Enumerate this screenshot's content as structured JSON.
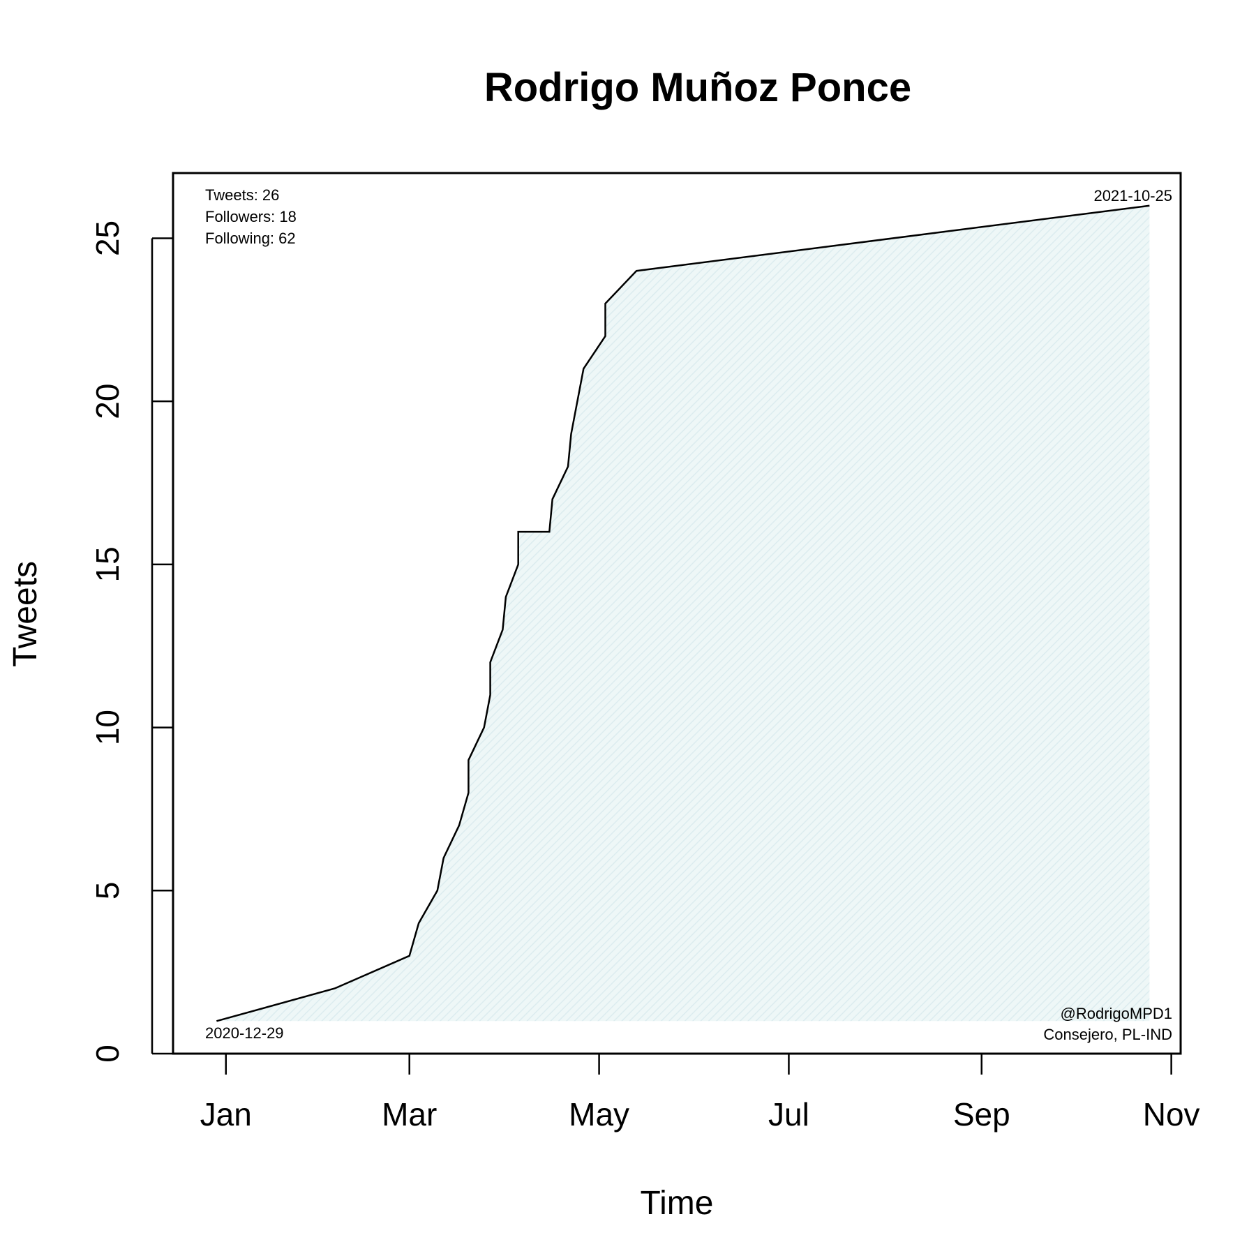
{
  "chart_data": {
    "type": "area",
    "title": "Rodrigo Muñoz Ponce",
    "xlabel": "Time",
    "ylabel": "Tweets",
    "ylim": [
      0,
      27
    ],
    "xlim": [
      "2020-12-15",
      "2021-11-04"
    ],
    "y_ticks": [
      0,
      5,
      10,
      15,
      20,
      25
    ],
    "x_ticks": [
      {
        "date": "2021-01-01",
        "label": "Jan"
      },
      {
        "date": "2021-03-01",
        "label": "Mar"
      },
      {
        "date": "2021-05-01",
        "label": "May"
      },
      {
        "date": "2021-07-01",
        "label": "Jul"
      },
      {
        "date": "2021-09-01",
        "label": "Sep"
      },
      {
        "date": "2021-11-01",
        "label": "Nov"
      }
    ],
    "grid": false,
    "fill_color": "#e8f4f4",
    "line_color": "#000000",
    "series": [
      {
        "x": [
          "2020-12-29",
          "2021-02-05",
          "2021-03-01",
          "2021-03-04",
          "2021-03-10",
          "2021-03-12",
          "2021-03-17",
          "2021-03-20",
          "2021-03-20",
          "2021-03-25",
          "2021-03-27",
          "2021-03-27",
          "2021-03-31",
          "2021-04-01",
          "2021-04-05",
          "2021-04-05",
          "2021-04-15",
          "2021-04-16",
          "2021-04-21",
          "2021-04-22",
          "2021-04-26",
          "2021-05-03",
          "2021-05-03",
          "2021-05-13",
          "2021-10-25"
        ],
        "y": [
          1,
          2,
          3,
          4,
          5,
          6,
          7,
          8,
          9,
          10,
          11,
          12,
          13,
          14,
          15,
          16,
          16,
          17,
          18,
          19,
          21,
          22,
          23,
          24,
          26
        ]
      }
    ],
    "annotations": {
      "stats": [
        "Tweets: 26",
        "Followers: 18",
        "Following: 62"
      ],
      "start_date": "2020-12-29",
      "end_date": "2021-10-25",
      "handle": "@RodrigoMPD1",
      "description": "Consejero, PL-IND"
    }
  }
}
